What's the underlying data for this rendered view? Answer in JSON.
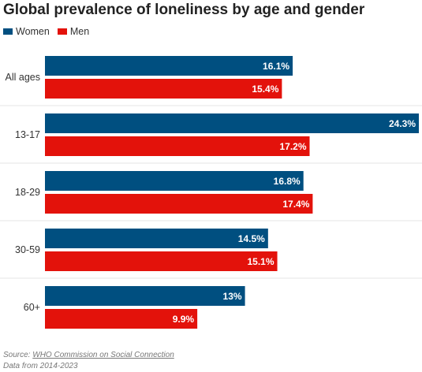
{
  "chart_data": {
    "type": "bar",
    "orientation": "horizontal",
    "title": "Global prevalence of loneliness by age and gender",
    "categories": [
      "All ages",
      "13-17",
      "18-29",
      "30-59",
      "60+"
    ],
    "series": [
      {
        "name": "Women",
        "values": [
          16.1,
          24.3,
          16.8,
          14.5,
          13
        ],
        "labels": [
          "16.1%",
          "24.3%",
          "16.8%",
          "14.5%",
          "13%"
        ],
        "color": "#004f80"
      },
      {
        "name": "Men",
        "values": [
          15.4,
          17.2,
          17.4,
          15.1,
          9.9
        ],
        "labels": [
          "15.4%",
          "17.2%",
          "17.4%",
          "15.1%",
          "9.9%"
        ],
        "color": "#e3120b"
      }
    ],
    "xlim": [
      0,
      24.3
    ],
    "grid": "horizontal separators between groups",
    "legend_position": "top-left"
  },
  "footer": {
    "source_prefix": "Source: ",
    "source_link": "WHO Commission on Social Connection",
    "note": "Data from 2014-2023"
  }
}
